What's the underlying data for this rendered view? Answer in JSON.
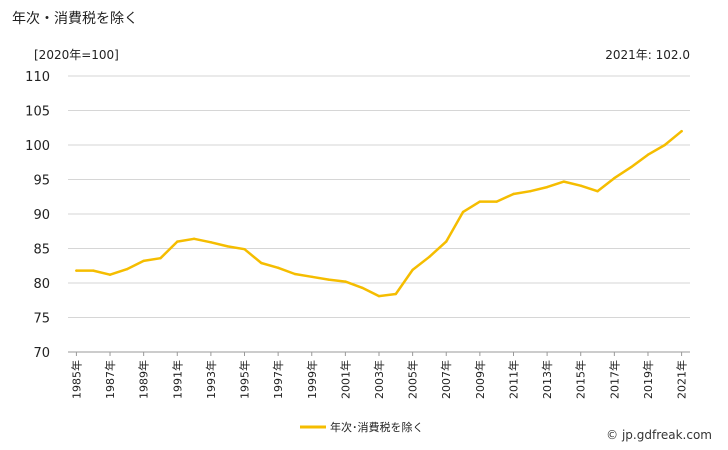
{
  "header": {
    "title": "年次・消費税を除く",
    "unit": "[2020年=100]",
    "latest": "2021年: 102.0"
  },
  "footer": {
    "credit": "© jp.gdfreak.com"
  },
  "chart_data": {
    "type": "line",
    "title": "年次・消費税を除く",
    "xlabel": "",
    "ylabel": "",
    "ylim": [
      70,
      110
    ],
    "yticks": [
      70,
      75,
      80,
      85,
      90,
      95,
      100,
      105,
      110
    ],
    "grid": "horizontal",
    "legend": "bottom-center",
    "color": "#f5bd00",
    "x_tick_labels": [
      "1985年",
      "1987年",
      "1989年",
      "1991年",
      "1993年",
      "1995年",
      "1997年",
      "1999年",
      "2001年",
      "2003年",
      "2005年",
      "2007年",
      "2009年",
      "2011年",
      "2013年",
      "2015年",
      "2017年",
      "2019年",
      "2021年"
    ],
    "series": [
      {
        "name": "年次･消費税を除く",
        "x": [
          1985,
          1986,
          1987,
          1988,
          1989,
          1990,
          1991,
          1992,
          1993,
          1994,
          1995,
          1996,
          1997,
          1998,
          1999,
          2000,
          2001,
          2002,
          2003,
          2004,
          2005,
          2006,
          2007,
          2008,
          2009,
          2010,
          2011,
          2012,
          2013,
          2014,
          2015,
          2016,
          2017,
          2018,
          2019,
          2020,
          2021
        ],
        "values": [
          81.8,
          81.8,
          81.2,
          82.0,
          83.2,
          83.6,
          86.0,
          86.4,
          85.9,
          85.3,
          84.9,
          82.9,
          82.2,
          81.3,
          80.9,
          80.5,
          80.2,
          79.3,
          78.1,
          78.4,
          81.9,
          83.8,
          86.0,
          90.3,
          91.8,
          91.8,
          92.9,
          93.3,
          93.9,
          94.7,
          94.1,
          93.3,
          95.2,
          96.8,
          98.6,
          100.0,
          102.0
        ]
      }
    ]
  }
}
